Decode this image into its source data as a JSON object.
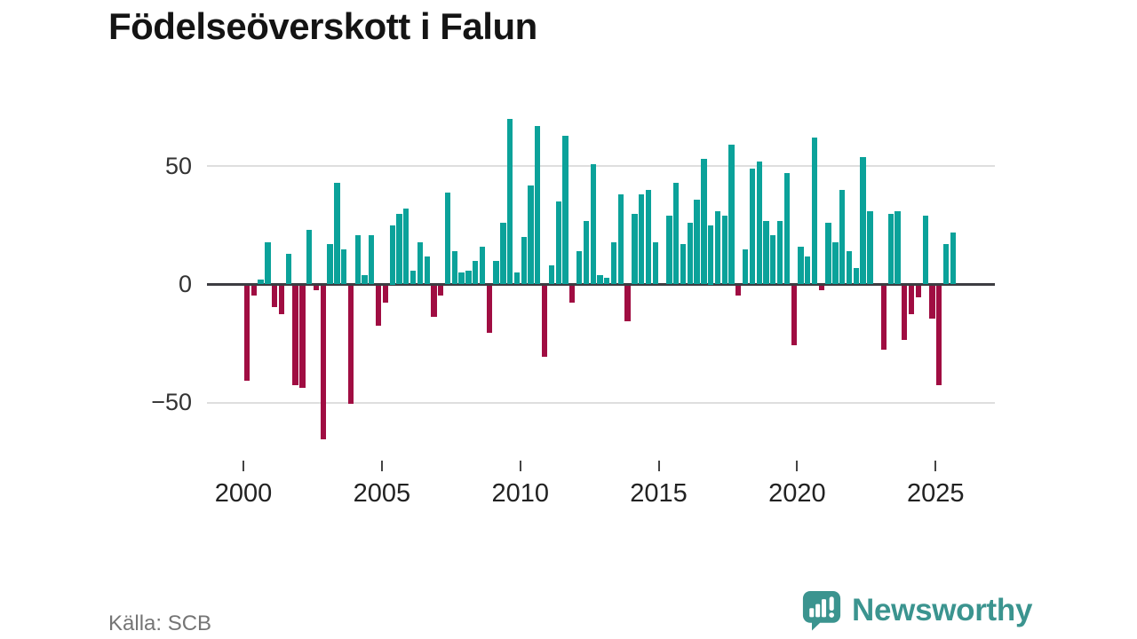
{
  "title": "Födelseöverskott i Falun",
  "source": "Källa: SCB",
  "logo": {
    "text": "Newsworthy"
  },
  "colors": {
    "positive": "#0ba29a",
    "negative": "#a00d42",
    "grid": "#dedede",
    "zero_axis": "#3d3d42",
    "tick_label": "#222222",
    "y_label": "#333333",
    "title": "#141414",
    "source_text": "#757575",
    "logo_teal": "#3b948f"
  },
  "chart_data": {
    "type": "bar",
    "title": "Födelseöverskott i Falun",
    "xlabel": "",
    "ylabel": "",
    "x_unit": "quarter",
    "start_quarter": "2000 Q1",
    "end_quarter": "2025 Q3",
    "grid": "horizontal",
    "legend": "none",
    "ylim": [
      -70,
      79
    ],
    "y_tick_values": [
      50,
      0,
      -50
    ],
    "y_tick_labels": [
      "50",
      "0",
      "−50"
    ],
    "x_tick_years": [
      2000,
      2005,
      2010,
      2015,
      2020,
      2025
    ],
    "x_tick_labels": [
      "2000",
      "2005",
      "2010",
      "2015",
      "2020",
      "2025"
    ],
    "values_by_year": [
      {
        "year": 2000,
        "q": [
          -40,
          -4,
          2,
          18
        ]
      },
      {
        "year": 2001,
        "q": [
          -9,
          -12,
          13,
          -42
        ]
      },
      {
        "year": 2002,
        "q": [
          -43,
          23,
          -2,
          -65
        ]
      },
      {
        "year": 2003,
        "q": [
          17,
          43,
          15,
          -50
        ]
      },
      {
        "year": 2004,
        "q": [
          21,
          4,
          21,
          -17
        ]
      },
      {
        "year": 2005,
        "q": [
          -7,
          25,
          30,
          32
        ]
      },
      {
        "year": 2006,
        "q": [
          6,
          18,
          12,
          -13
        ]
      },
      {
        "year": 2007,
        "q": [
          -4,
          39,
          14,
          5
        ]
      },
      {
        "year": 2008,
        "q": [
          6,
          10,
          16,
          -20
        ]
      },
      {
        "year": 2009,
        "q": [
          10,
          26,
          70,
          5
        ]
      },
      {
        "year": 2010,
        "q": [
          20,
          42,
          67,
          -30
        ]
      },
      {
        "year": 2011,
        "q": [
          8,
          35,
          63,
          -7
        ]
      },
      {
        "year": 2012,
        "q": [
          14,
          27,
          51,
          4
        ]
      },
      {
        "year": 2013,
        "q": [
          3,
          18,
          38,
          -15
        ]
      },
      {
        "year": 2014,
        "q": [
          30,
          38,
          40,
          18
        ]
      },
      {
        "year": 2015,
        "q": [
          0,
          29,
          43,
          17
        ]
      },
      {
        "year": 2016,
        "q": [
          26,
          36,
          53,
          25
        ]
      },
      {
        "year": 2017,
        "q": [
          31,
          29,
          59,
          -4
        ]
      },
      {
        "year": 2018,
        "q": [
          15,
          49,
          52,
          27
        ]
      },
      {
        "year": 2019,
        "q": [
          21,
          27,
          47,
          -25
        ]
      },
      {
        "year": 2020,
        "q": [
          16,
          12,
          62,
          -2
        ]
      },
      {
        "year": 2021,
        "q": [
          26,
          18,
          40,
          14
        ]
      },
      {
        "year": 2022,
        "q": [
          7,
          54,
          31,
          0
        ]
      },
      {
        "year": 2023,
        "q": [
          -27,
          30,
          31,
          -23
        ]
      },
      {
        "year": 2024,
        "q": [
          -12,
          -5,
          29,
          -14
        ]
      },
      {
        "year": 2025,
        "q": [
          -42,
          17,
          22
        ]
      }
    ]
  }
}
